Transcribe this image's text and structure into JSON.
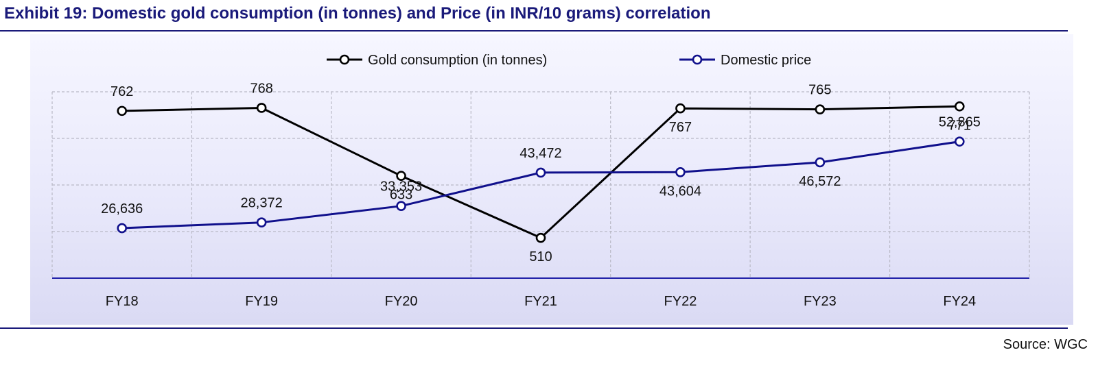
{
  "title": "Exhibit 19: Domestic gold consumption (in tonnes) and Price (in INR/10 grams) correlation",
  "source": "Source: WGC",
  "colors": {
    "consumption": "#000000",
    "price": "#10108c",
    "axis": "#1f1fa8",
    "grid": "#b9b9c6"
  },
  "chart_data": {
    "type": "line",
    "categories": [
      "FY18",
      "FY19",
      "FY20",
      "FY21",
      "FY22",
      "FY23",
      "FY24"
    ],
    "series": [
      {
        "name": "Gold consumption (in tonnes)",
        "color": "#000000",
        "values": [
          762,
          768,
          633,
          510,
          767,
          765,
          771
        ],
        "labels": [
          "762",
          "768",
          "633",
          "510",
          "767",
          "765",
          "771"
        ]
      },
      {
        "name": "Domestic price",
        "color": "#10108c",
        "values": [
          26636,
          28372,
          33353,
          43472,
          43604,
          46572,
          52865
        ],
        "labels": [
          "26,636",
          "28,372",
          "33,353",
          "43,472",
          "43,604",
          "46,572",
          "52,865"
        ]
      }
    ],
    "grid": true,
    "legend_position": "top-center",
    "axes": "no value axes shown; two series on independent scales"
  }
}
